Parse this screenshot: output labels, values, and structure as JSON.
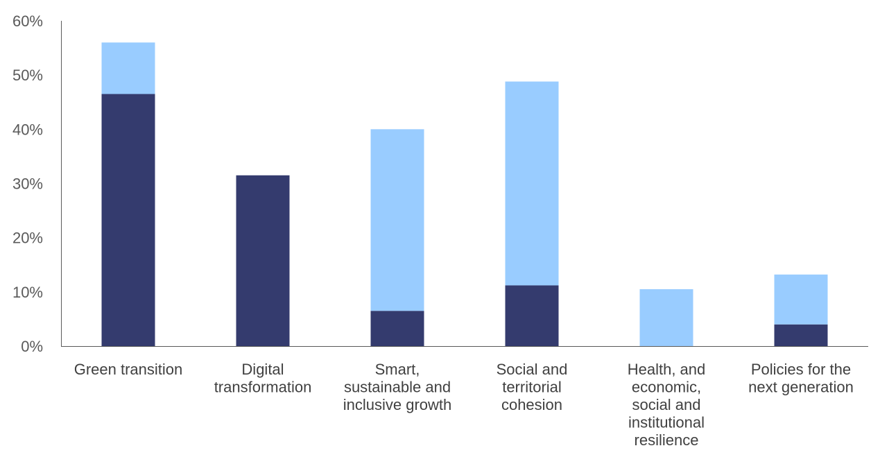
{
  "chart_data": {
    "type": "bar",
    "stacked": true,
    "categories": [
      [
        "Green transition"
      ],
      [
        "Digital",
        "transformation"
      ],
      [
        "Smart,",
        "sustainable and",
        "inclusive growth"
      ],
      [
        "Social and",
        "territorial",
        "cohesion"
      ],
      [
        "Health, and",
        "economic,",
        "social and",
        "institutional",
        "resilience"
      ],
      [
        "Policies for the",
        "next generation"
      ]
    ],
    "series": [
      {
        "values": [
          46.5,
          31.5,
          6.5,
          11.2,
          0,
          4.0
        ],
        "color": "#343b6e"
      },
      {
        "values": [
          9.5,
          0,
          33.5,
          37.6,
          10.5,
          9.2
        ],
        "color": "#99ccff"
      }
    ],
    "ylim": [
      0,
      60
    ],
    "yticks": [
      0,
      10,
      20,
      30,
      40,
      50,
      60
    ],
    "ytick_labels": [
      "0%",
      "10%",
      "20%",
      "30%",
      "40%",
      "50%",
      "60%"
    ],
    "grid": false,
    "legend": "none"
  }
}
